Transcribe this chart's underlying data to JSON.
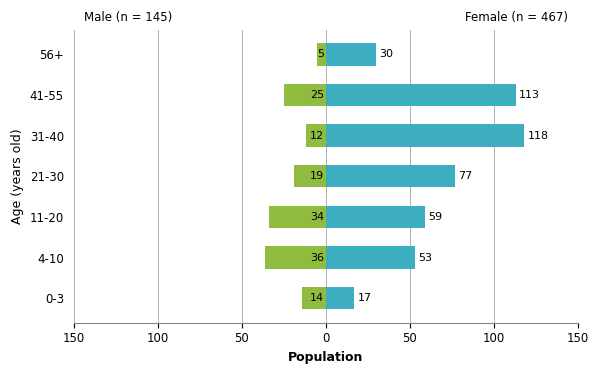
{
  "age_groups": [
    "0-3",
    "4-10",
    "11-20",
    "21-30",
    "31-40",
    "41-55",
    "56+"
  ],
  "male_values": [
    14,
    36,
    34,
    19,
    12,
    25,
    5
  ],
  "female_values": [
    17,
    53,
    59,
    77,
    118,
    113,
    30
  ],
  "male_color": "#8fbc3f",
  "female_color": "#3dadc0",
  "male_label": "Male (n = 145)",
  "female_label": "Female (n = 467)",
  "xlabel": "Population",
  "ylabel": "Age (years old)",
  "xlim": [
    -150,
    150
  ],
  "xticks": [
    -150,
    -100,
    -50,
    0,
    50,
    100,
    150
  ],
  "xtick_labels": [
    "150",
    "100",
    "50",
    "0",
    "50",
    "100",
    "150"
  ],
  "background_color": "#ffffff",
  "grid_color": "#b0b0b0",
  "bar_height": 0.55
}
